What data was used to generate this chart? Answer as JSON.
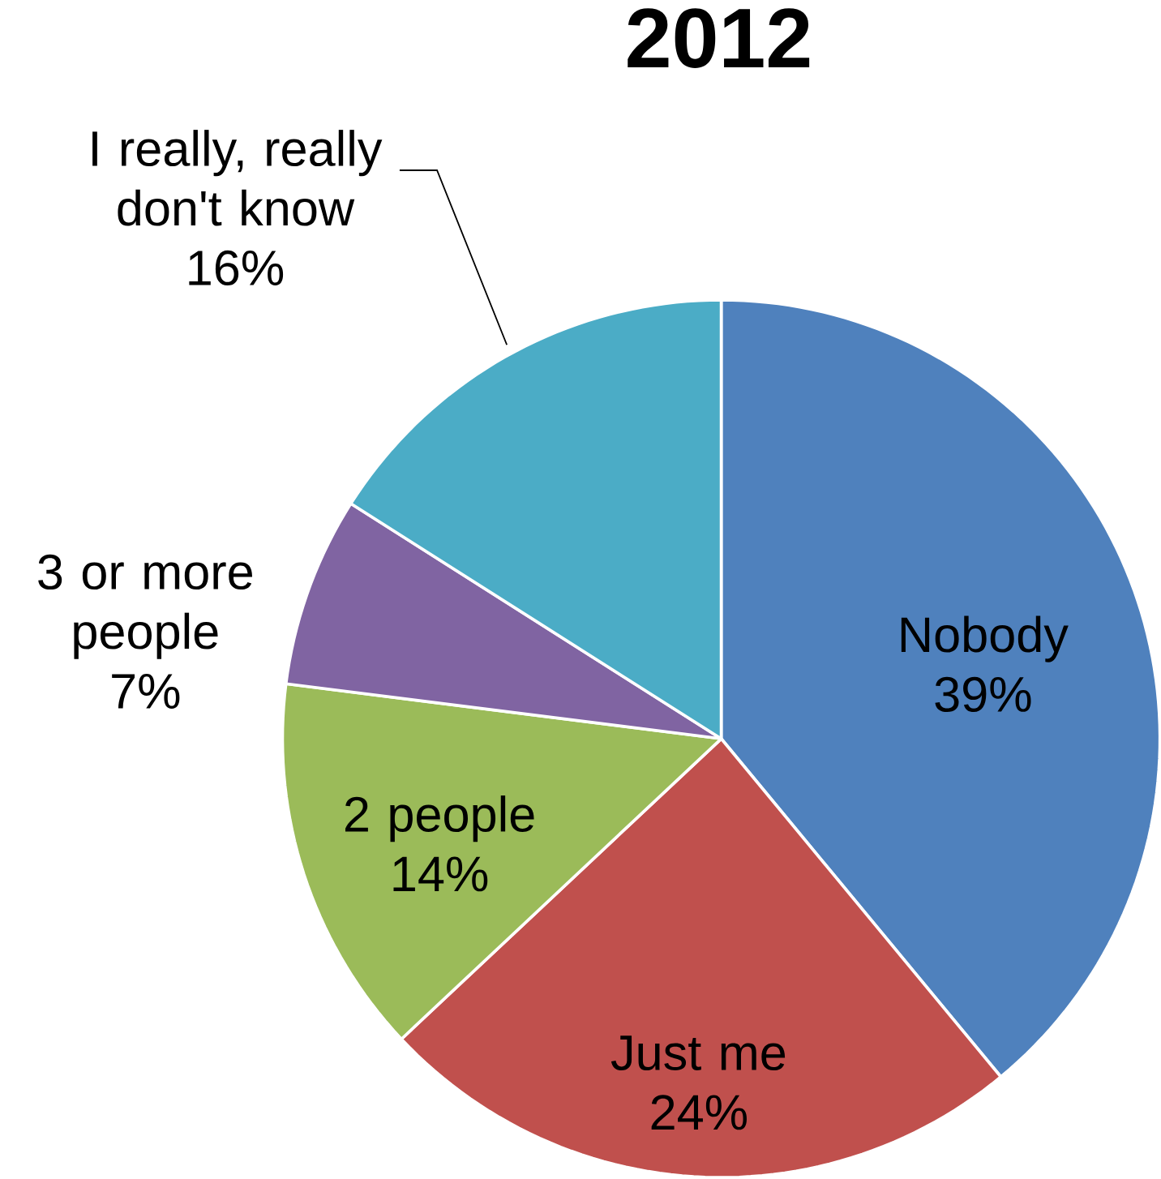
{
  "chart_data": {
    "type": "pie",
    "title": "2012",
    "categories": [
      "Nobody",
      "Just me",
      "2 people",
      "3 or more people",
      "I really, really don't know"
    ],
    "values": [
      39,
      24,
      14,
      7,
      16
    ],
    "value_labels": [
      "39%",
      "24%",
      "14%",
      "7%",
      "16%"
    ],
    "colors": [
      "#4f81bd",
      "#c0504d",
      "#9bbb59",
      "#8064a2",
      "#4bacc6"
    ]
  }
}
